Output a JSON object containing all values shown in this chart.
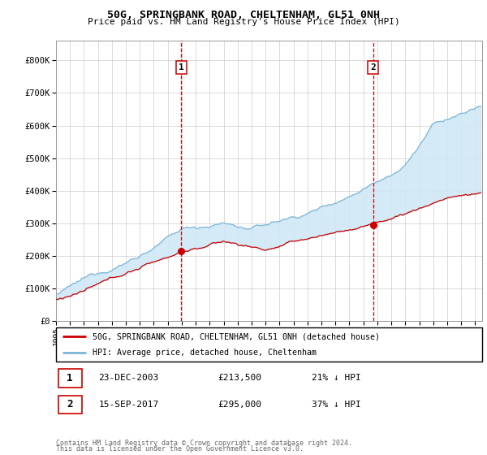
{
  "title": "50G, SPRINGBANK ROAD, CHELTENHAM, GL51 0NH",
  "subtitle": "Price paid vs. HM Land Registry's House Price Index (HPI)",
  "ylabel_ticks": [
    "£0",
    "£100K",
    "£200K",
    "£300K",
    "£400K",
    "£500K",
    "£600K",
    "£700K",
    "£800K"
  ],
  "ytick_values": [
    0,
    100000,
    200000,
    300000,
    400000,
    500000,
    600000,
    700000,
    800000
  ],
  "ylim": [
    0,
    860000
  ],
  "xlim_start": 1995.0,
  "xlim_end": 2025.5,
  "hpi_color": "#7ab5d8",
  "hpi_fill_color": "#d0e8f5",
  "price_color": "#cc0000",
  "vline_color": "#cc0000",
  "marker1_x": 2003.97,
  "marker1_y": 213500,
  "marker2_x": 2017.71,
  "marker2_y": 295000,
  "legend_line1": "50G, SPRINGBANK ROAD, CHELTENHAM, GL51 0NH (detached house)",
  "legend_line2": "HPI: Average price, detached house, Cheltenham",
  "marker1_date": "23-DEC-2003",
  "marker1_price": "£213,500",
  "marker1_pct": "21% ↓ HPI",
  "marker2_date": "15-SEP-2017",
  "marker2_price": "£295,000",
  "marker2_pct": "37% ↓ HPI",
  "footer1": "Contains HM Land Registry data © Crown copyright and database right 2024.",
  "footer2": "This data is licensed under the Open Government Licence v3.0."
}
